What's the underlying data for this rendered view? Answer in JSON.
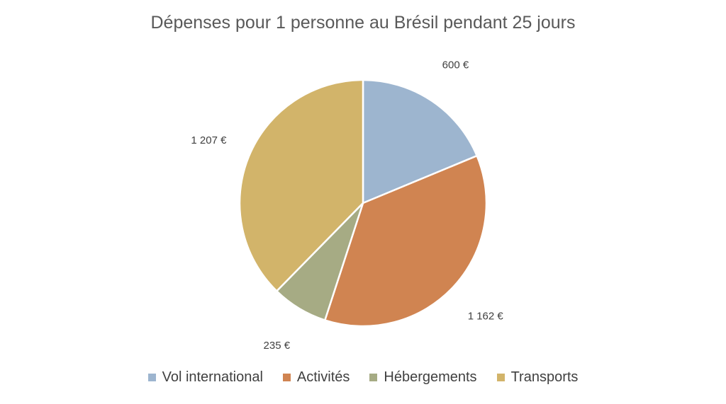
{
  "chart_data": {
    "type": "pie",
    "title": "Dépenses pour 1 personne au Brésil pendant 25 jours",
    "categories": [
      "Vol international",
      "Activités",
      "Hébergements",
      "Transports"
    ],
    "values": [
      600,
      1162,
      235,
      1207
    ],
    "data_labels": [
      "600 €",
      "1 162 €",
      "235 €",
      "1 207 €"
    ],
    "colors": [
      "#9DB5CF",
      "#D08451",
      "#A6AB84",
      "#D2B46A"
    ],
    "start_angle": "12 o'clock",
    "direction": "clockwise",
    "legend": "bottom"
  }
}
